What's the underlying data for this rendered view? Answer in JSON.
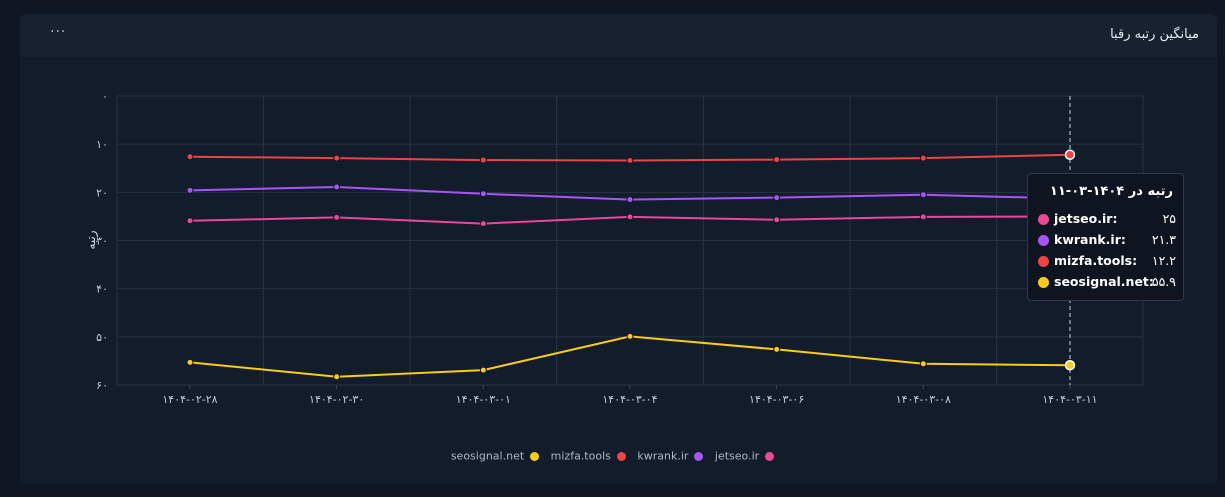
{
  "card": {
    "title": "میانگین رتبه رقبا",
    "menu_label": "···"
  },
  "chart_data": {
    "type": "line",
    "title": "میانگین رتبه رقبا",
    "xlabel": "",
    "ylabel": "رتبه",
    "ylim": [
      0,
      60
    ],
    "y_inverted": true,
    "y_ticks": [
      "۰",
      "۱۰",
      "۲۰",
      "۳۰",
      "۴۰",
      "۵۰",
      "۶۰"
    ],
    "y_tick_values": [
      0,
      10,
      20,
      30,
      40,
      50,
      60
    ],
    "categories": [
      "۱۴۰۴-۰۲-۲۸",
      "۱۴۰۴-۰۲-۳۰",
      "۱۴۰۴-۰۳-۰۱",
      "۱۴۰۴-۰۳-۰۴",
      "۱۴۰۴-۰۳-۰۶",
      "۱۴۰۴-۰۳-۰۸",
      "۱۴۰۴-۰۳-۱۱"
    ],
    "grid": true,
    "legend_position": "bottom",
    "series": [
      {
        "name": "jetseo.ir",
        "color": "#ec4899",
        "values": [
          25.9,
          25.2,
          26.5,
          25.1,
          25.7,
          25.1,
          25
        ]
      },
      {
        "name": "kwrank.ir",
        "color": "#a855f7",
        "values": [
          19.6,
          18.9,
          20.3,
          21.5,
          21.1,
          20.5,
          21.3
        ]
      },
      {
        "name": "mizfa.tools",
        "color": "#ef4444",
        "values": [
          12.6,
          12.9,
          13.3,
          13.4,
          13.2,
          12.9,
          12.2
        ]
      },
      {
        "name": "seosignal.net",
        "color": "#facc15",
        "values": [
          55.3,
          58.3,
          56.9,
          49.9,
          52.6,
          55.6,
          55.9
        ]
      }
    ],
    "tooltip": {
      "title": "رتبه در ۱۴۰۴-۰۳-۱۱",
      "category_index": 6,
      "rows": [
        {
          "name": "jetseo.ir:",
          "value": "۲۵",
          "color": "#ec4899"
        },
        {
          "name": "kwrank.ir:",
          "value": "۲۱.۳",
          "color": "#a855f7"
        },
        {
          "name": "mizfa.tools:",
          "value": "۱۲.۲",
          "color": "#ef4444"
        },
        {
          "name": "seosignal.net:",
          "value": "۵۵.۹",
          "color": "#facc15"
        }
      ]
    },
    "legend_items": [
      {
        "label": "seosignal.net",
        "color": "#facc15"
      },
      {
        "label": "mizfa.tools",
        "color": "#ef4444"
      },
      {
        "label": "kwrank.ir",
        "color": "#a855f7"
      },
      {
        "label": "jetseo.ir",
        "color": "#ec4899"
      }
    ]
  }
}
